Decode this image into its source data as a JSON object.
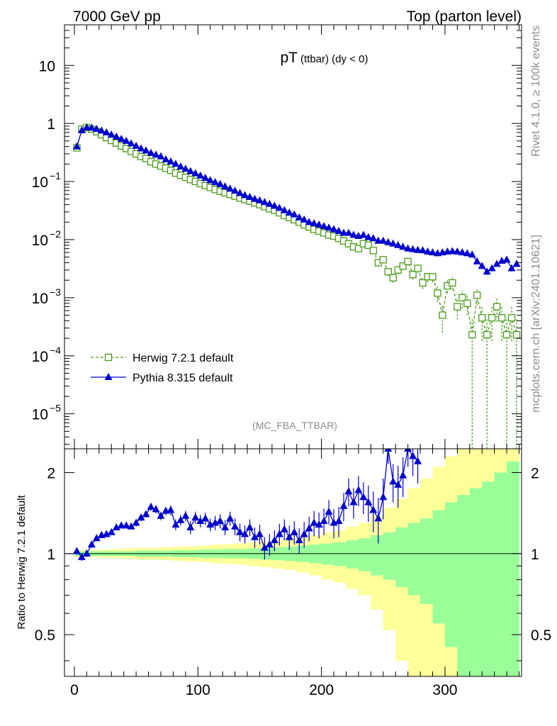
{
  "header": {
    "left": "7000 GeV pp",
    "right": "Top (parton level)"
  },
  "side_labels": {
    "rivet": "Rivet 4.1.0, ≥ 100k events",
    "mcplots": "mcplots.cern.ch [arXiv:2401.10621]"
  },
  "colors": {
    "herwig": "#4a9a1a",
    "pythia": "#0000cc",
    "band_yellow": "#ffff99",
    "band_green": "#99ff99"
  },
  "chart_data": [
    {
      "type": "line",
      "title": "pT",
      "title_sub": "(ttbar) (dy < 0)",
      "watermark": "(MC_FBA_TTBAR)",
      "yscale": "log",
      "xlim": [
        -8,
        362
      ],
      "ylim": [
        2.5e-06,
        50
      ],
      "ytick_labels": [
        {
          "value": 10,
          "base": "10",
          "exp": ""
        },
        {
          "value": 1,
          "base": "1",
          "exp": ""
        },
        {
          "value": 0.1,
          "base": "10",
          "exp": "−1"
        },
        {
          "value": 0.01,
          "base": "10",
          "exp": "−2"
        },
        {
          "value": 0.001,
          "base": "10",
          "exp": "−3"
        },
        {
          "value": 0.0001,
          "base": "10",
          "exp": "−4"
        },
        {
          "value": 1e-05,
          "base": "10",
          "exp": "−5"
        }
      ],
      "legend_position": "lower-left",
      "legend": [
        "Herwig 7.2.1 default",
        "Pythia 8.315 default"
      ],
      "series": [
        {
          "name": "Herwig 7.2.1 default",
          "style": "dashed-open-square",
          "x": [
            2,
            6,
            10,
            14,
            18,
            22,
            26,
            30,
            34,
            38,
            42,
            46,
            50,
            54,
            58,
            62,
            66,
            70,
            74,
            78,
            82,
            86,
            90,
            94,
            98,
            102,
            106,
            110,
            114,
            118,
            122,
            126,
            130,
            134,
            138,
            142,
            146,
            150,
            154,
            158,
            162,
            166,
            170,
            174,
            178,
            182,
            186,
            190,
            194,
            198,
            202,
            206,
            210,
            214,
            218,
            222,
            226,
            230,
            234,
            238,
            242,
            246,
            250,
            254,
            258,
            262,
            266,
            270,
            274,
            278,
            282,
            286,
            290,
            294,
            298,
            302,
            306,
            310,
            314,
            318,
            322,
            326,
            330,
            334,
            338,
            342,
            346,
            350,
            354,
            358
          ],
          "values": [
            0.38,
            0.8,
            0.85,
            0.8,
            0.72,
            0.64,
            0.57,
            0.51,
            0.46,
            0.41,
            0.37,
            0.33,
            0.3,
            0.27,
            0.25,
            0.22,
            0.2,
            0.185,
            0.17,
            0.155,
            0.14,
            0.128,
            0.118,
            0.108,
            0.1,
            0.092,
            0.085,
            0.079,
            0.073,
            0.068,
            0.064,
            0.06,
            0.056,
            0.052,
            0.049,
            0.046,
            0.043,
            0.04,
            0.037,
            0.034,
            0.032,
            0.029,
            0.026,
            0.024,
            0.022,
            0.02,
            0.018,
            0.0165,
            0.015,
            0.014,
            0.013,
            0.012,
            0.0115,
            0.0105,
            0.0095,
            0.0085,
            0.0075,
            0.007,
            0.0085,
            0.008,
            0.0065,
            0.004,
            0.0045,
            0.0028,
            0.0022,
            0.003,
            0.0035,
            0.0042,
            0.0025,
            0.0032,
            0.0018,
            0.0023,
            0.0023,
            0.0012,
            0.0005,
            0.0016,
            0.0018,
            0.0007,
            0.001,
            0.0008,
            0.00023,
            0.0011,
            0.00045,
            0.00023,
            0.00045,
            0.0007,
            0.00045,
            0.00023,
            0.00045,
            0.00023
          ],
          "errors": [
            0.02,
            0.02,
            0.02,
            0.02,
            0.02,
            0.02,
            0.02,
            0.02,
            0.02,
            0.02,
            0.02,
            0.02,
            0.02,
            0.02,
            0.02,
            0.02,
            0.02,
            0.02,
            0.02,
            0.02,
            0.02,
            0.02,
            0.02,
            0.02,
            0.02,
            0.02,
            0.02,
            0.02,
            0.02,
            0.02,
            0.02,
            0.02,
            0.02,
            0.02,
            0.02,
            0.02,
            0.02,
            0.02,
            0.02,
            0.02,
            0.02,
            0.03,
            0.03,
            0.03,
            0.04,
            0.04,
            0.04,
            0.05,
            0.05,
            0.05,
            0.06,
            0.06,
            0.06,
            0.07,
            0.07,
            0.08,
            0.08,
            0.09,
            0.09,
            0.1,
            0.11,
            0.13,
            0.13,
            0.16,
            0.18,
            0.16,
            0.15,
            0.14,
            0.18,
            0.16,
            0.22,
            0.2,
            0.2,
            0.3,
            0.5,
            0.25,
            0.24,
            0.4,
            0.35,
            0.38,
            1,
            0.33,
            0.6,
            1,
            0.6,
            0.45,
            0.6,
            1,
            0.6,
            1
          ]
        },
        {
          "name": "Pythia 8.315 default",
          "style": "solid-filled-triangle",
          "x": [
            2,
            6,
            10,
            14,
            18,
            22,
            26,
            30,
            34,
            38,
            42,
            46,
            50,
            54,
            58,
            62,
            66,
            70,
            74,
            78,
            82,
            86,
            90,
            94,
            98,
            102,
            106,
            110,
            114,
            118,
            122,
            126,
            130,
            134,
            138,
            142,
            146,
            150,
            154,
            158,
            162,
            166,
            170,
            174,
            178,
            182,
            186,
            190,
            194,
            198,
            202,
            206,
            210,
            214,
            218,
            222,
            226,
            230,
            234,
            238,
            242,
            246,
            250,
            254,
            258,
            262,
            266,
            270,
            274,
            278,
            282,
            286,
            290,
            294,
            298,
            302,
            306,
            310,
            314,
            318,
            322,
            326,
            330,
            334,
            338,
            342,
            346,
            350,
            354,
            358
          ],
          "values": [
            0.4,
            0.76,
            0.85,
            0.84,
            0.8,
            0.75,
            0.7,
            0.64,
            0.59,
            0.54,
            0.5,
            0.45,
            0.41,
            0.37,
            0.34,
            0.31,
            0.29,
            0.27,
            0.24,
            0.22,
            0.2,
            0.18,
            0.165,
            0.15,
            0.138,
            0.126,
            0.115,
            0.105,
            0.097,
            0.09,
            0.082,
            0.075,
            0.069,
            0.063,
            0.058,
            0.054,
            0.05,
            0.047,
            0.044,
            0.041,
            0.038,
            0.035,
            0.032,
            0.029,
            0.027,
            0.024,
            0.022,
            0.02,
            0.019,
            0.018,
            0.017,
            0.016,
            0.015,
            0.014,
            0.013,
            0.013,
            0.012,
            0.0115,
            0.012,
            0.011,
            0.0105,
            0.0095,
            0.0095,
            0.009,
            0.0085,
            0.008,
            0.0075,
            0.007,
            0.0068,
            0.0066,
            0.0065,
            0.0062,
            0.006,
            0.0058,
            0.006,
            0.0062,
            0.0063,
            0.0062,
            0.006,
            0.0058,
            0.0055,
            0.0042,
            0.0035,
            0.0028,
            0.0032,
            0.0038,
            0.0043,
            0.0045,
            0.0032,
            0.0038
          ],
          "errors": [
            0.02,
            0.02,
            0.02,
            0.02,
            0.02,
            0.02,
            0.02,
            0.02,
            0.02,
            0.02,
            0.02,
            0.02,
            0.02,
            0.02,
            0.02,
            0.02,
            0.02,
            0.02,
            0.02,
            0.02,
            0.02,
            0.02,
            0.02,
            0.02,
            0.02,
            0.02,
            0.02,
            0.02,
            0.02,
            0.02,
            0.02,
            0.02,
            0.02,
            0.02,
            0.02,
            0.02,
            0.02,
            0.02,
            0.02,
            0.02,
            0.02,
            0.02,
            0.03,
            0.03,
            0.03,
            0.03,
            0.03,
            0.03,
            0.04,
            0.04,
            0.04,
            0.04,
            0.04,
            0.05,
            0.05,
            0.05,
            0.05,
            0.05,
            0.05,
            0.06,
            0.06,
            0.06,
            0.06,
            0.06,
            0.07,
            0.07,
            0.07,
            0.07,
            0.07,
            0.08,
            0.08,
            0.08,
            0.08,
            0.08,
            0.08,
            0.08,
            0.08,
            0.08,
            0.08,
            0.08,
            0.09,
            0.1,
            0.11,
            0.12,
            0.11,
            0.1,
            0.1,
            0.1,
            0.12,
            0.11
          ]
        }
      ]
    },
    {
      "type": "line",
      "ylabel": "Ratio to Herwig 7.2.1 default",
      "yscale": "log",
      "xlim": [
        -8,
        362
      ],
      "ylim": [
        0.35,
        2.45
      ],
      "xticks": [
        0,
        100,
        200,
        300
      ],
      "yticks": [
        0.5,
        1,
        2
      ],
      "reference_line": 1,
      "band": {
        "x_edges": [
          0,
          10,
          20,
          30,
          40,
          50,
          60,
          70,
          80,
          90,
          100,
          110,
          120,
          130,
          140,
          150,
          160,
          170,
          180,
          190,
          200,
          210,
          220,
          230,
          240,
          250,
          260,
          270,
          280,
          290,
          300,
          310,
          320,
          330,
          340,
          350,
          360
        ],
        "green_halfwidth": [
          0.02,
          0.02,
          0.02,
          0.02,
          0.02,
          0.025,
          0.025,
          0.025,
          0.03,
          0.03,
          0.035,
          0.035,
          0.04,
          0.04,
          0.045,
          0.05,
          0.055,
          0.06,
          0.07,
          0.08,
          0.09,
          0.1,
          0.12,
          0.14,
          0.17,
          0.2,
          0.25,
          0.3,
          0.35,
          0.45,
          0.55,
          0.65,
          0.75,
          0.85,
          1,
          1.2
        ],
        "yellow_halfwidth": [
          0.03,
          0.03,
          0.035,
          0.04,
          0.045,
          0.05,
          0.05,
          0.055,
          0.06,
          0.065,
          0.07,
          0.08,
          0.085,
          0.09,
          0.1,
          0.11,
          0.12,
          0.13,
          0.15,
          0.17,
          0.2,
          0.22,
          0.26,
          0.3,
          0.38,
          0.48,
          0.6,
          0.75,
          0.9,
          1.1,
          1.3,
          1.5,
          1.7,
          2,
          2.3,
          2.6
        ]
      },
      "series": [
        {
          "name": "Pythia 8.315 default",
          "x": [
            2,
            6,
            10,
            14,
            18,
            22,
            26,
            30,
            34,
            38,
            42,
            46,
            50,
            54,
            58,
            62,
            66,
            70,
            74,
            78,
            82,
            86,
            90,
            94,
            98,
            102,
            106,
            110,
            114,
            118,
            122,
            126,
            130,
            134,
            138,
            142,
            146,
            150,
            154,
            158,
            162,
            166,
            170,
            174,
            178,
            182,
            186,
            190,
            194,
            198,
            202,
            206,
            210,
            214,
            218,
            222,
            226,
            230,
            234,
            238,
            242,
            246,
            250,
            254,
            258,
            262,
            266,
            270,
            274,
            278
          ],
          "values": [
            1.02,
            0.97,
            1.0,
            1.08,
            1.14,
            1.17,
            1.18,
            1.2,
            1.25,
            1.27,
            1.27,
            1.26,
            1.3,
            1.36,
            1.4,
            1.49,
            1.46,
            1.38,
            1.44,
            1.45,
            1.28,
            1.33,
            1.38,
            1.25,
            1.36,
            1.32,
            1.35,
            1.28,
            1.3,
            1.32,
            1.25,
            1.35,
            1.26,
            1.2,
            1.18,
            1.25,
            1.15,
            1.18,
            1.05,
            1.08,
            1.12,
            1.18,
            1.23,
            1.15,
            1.2,
            1.12,
            1.18,
            1.24,
            1.3,
            1.28,
            1.32,
            1.43,
            1.3,
            1.32,
            1.5,
            1.7,
            1.55,
            1.72,
            1.62,
            1.55,
            1.45,
            1.35,
            1.62,
            2.45,
            1.85,
            1.8,
            1.95,
            2.45,
            2.3,
            2.2
          ],
          "errors": [
            0.03,
            0.03,
            0.03,
            0.03,
            0.03,
            0.03,
            0.03,
            0.03,
            0.03,
            0.03,
            0.03,
            0.03,
            0.04,
            0.04,
            0.04,
            0.05,
            0.05,
            0.05,
            0.05,
            0.06,
            0.06,
            0.06,
            0.06,
            0.07,
            0.07,
            0.07,
            0.07,
            0.07,
            0.08,
            0.08,
            0.08,
            0.08,
            0.09,
            0.09,
            0.09,
            0.09,
            0.1,
            0.1,
            0.1,
            0.1,
            0.1,
            0.11,
            0.11,
            0.12,
            0.12,
            0.12,
            0.13,
            0.13,
            0.14,
            0.14,
            0.15,
            0.15,
            0.16,
            0.17,
            0.18,
            0.2,
            0.2,
            0.22,
            0.22,
            0.24,
            0.25,
            0.26,
            0.28,
            0.3,
            0.3,
            0.32,
            0.33,
            0.35,
            0.36,
            0.38
          ]
        }
      ]
    }
  ]
}
